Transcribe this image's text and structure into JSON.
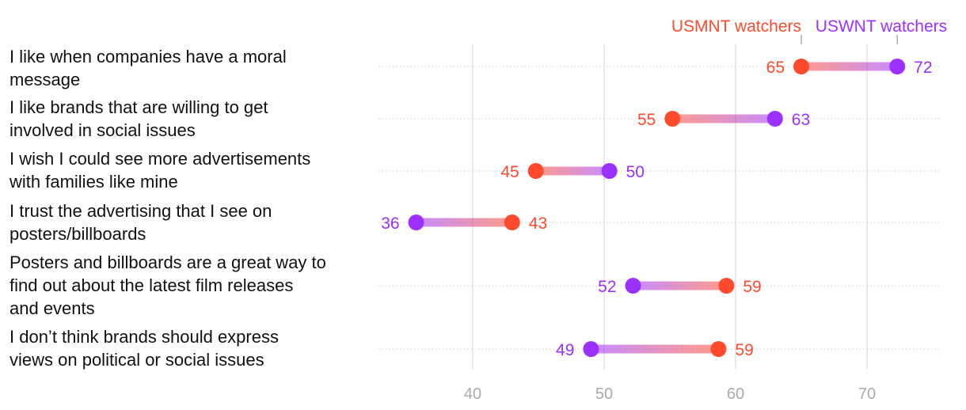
{
  "chart_data": {
    "type": "dumbbell",
    "title": "",
    "xlabel": "",
    "ylabel": "",
    "xlim": [
      33,
      76
    ],
    "x_ticks": [
      40,
      50,
      60,
      70
    ],
    "x_tick_labels": [
      "40",
      "50",
      "60",
      "70"
    ],
    "grid": true,
    "legend": {
      "position": "top-right",
      "entries": [
        {
          "name": "USMNT watchers",
          "color": "#ff4a2e"
        },
        {
          "name": "USWNT watchers",
          "color": "#9b30ff"
        }
      ]
    },
    "categories": [
      {
        "lines": [
          "I like when companies have a moral",
          "message"
        ]
      },
      {
        "lines": [
          "I like brands that are willing to get",
          "involved in social issues"
        ]
      },
      {
        "lines": [
          "I wish I could see more advertisements",
          "with families like mine"
        ]
      },
      {
        "lines": [
          "I trust the advertising that I see on",
          "posters/billboards"
        ]
      },
      {
        "lines": [
          "Posters and billboards are a great way to",
          "find out about the latest film releases",
          "and events"
        ]
      },
      {
        "lines": [
          "I don’t think brands should express",
          "views on political or social issues"
        ]
      }
    ],
    "series": [
      {
        "name": "USMNT watchers",
        "color": "#ff4a2e",
        "values": [
          65,
          55,
          45,
          43,
          59,
          59
        ],
        "positions": [
          65,
          55.2,
          44.8,
          43,
          59.3,
          58.7
        ]
      },
      {
        "name": "USWNT watchers",
        "color": "#9b30ff",
        "values": [
          72,
          63,
          50,
          36,
          52,
          49
        ],
        "positions": [
          72.3,
          63,
          50.4,
          35.7,
          52.2,
          49
        ]
      }
    ]
  }
}
